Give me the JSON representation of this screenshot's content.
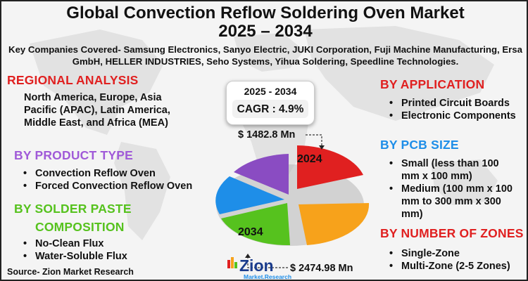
{
  "title_line1": "Global Convection Reflow Soldering Oven Market",
  "title_line2": "2025 – 2034",
  "companies": "Key Companies Covered- Samsung Electronics, Sanyo Electric, JUKI Corporation, Fuji Machine Manufacturing, Ersa GmbH, HELLER INDUSTRIES, Seho Systems, Yihua Soldering, Speedline Technologies.",
  "regional": {
    "heading": "REGIONAL ANALYSIS",
    "text": "North America, Europe, Asia Pacific (APAC), Latin America, Middle East, and Africa (MEA)"
  },
  "product_type": {
    "heading": "BY PRODUCT TYPE",
    "items": [
      "Convection Reflow Oven",
      "Forced Convection Reflow Oven"
    ]
  },
  "solder_paste": {
    "heading_line1": "BY SOLDER PASTE",
    "heading_line2": "COMPOSITION",
    "items": [
      "No-Clean Flux",
      "Water-Soluble Flux"
    ]
  },
  "application": {
    "heading": "BY APPLICATION",
    "items": [
      "Printed Circuit Boards",
      "Electronic Components"
    ]
  },
  "pcb_size": {
    "heading": "BY PCB SIZE",
    "items": [
      "Small (less than 100 mm x 100 mm)",
      "Medium (100 mm x 100 mm to 300 mm x 300 mm)"
    ]
  },
  "zones": {
    "heading": "BY NUMBER OF ZONES",
    "items": [
      "Single-Zone",
      "Multi-Zone (2-5 Zones)"
    ]
  },
  "cagr": {
    "years": "2025 - 2034",
    "value": "CAGR : 4.9%"
  },
  "value_2024": "$ 1482.8 Mn",
  "value_2034": "$ 2474.98 Mn",
  "year_2024": "2024",
  "year_2034": "2034",
  "source": "Source- Zion Market Research",
  "logo_text": "Zion",
  "logo_sub": "Market.Research",
  "colors": {
    "red": "#e02020",
    "purple": "#a05ad8",
    "green": "#56c21e",
    "blue": "#1e8ee8",
    "orange": "#f7a21b"
  }
}
